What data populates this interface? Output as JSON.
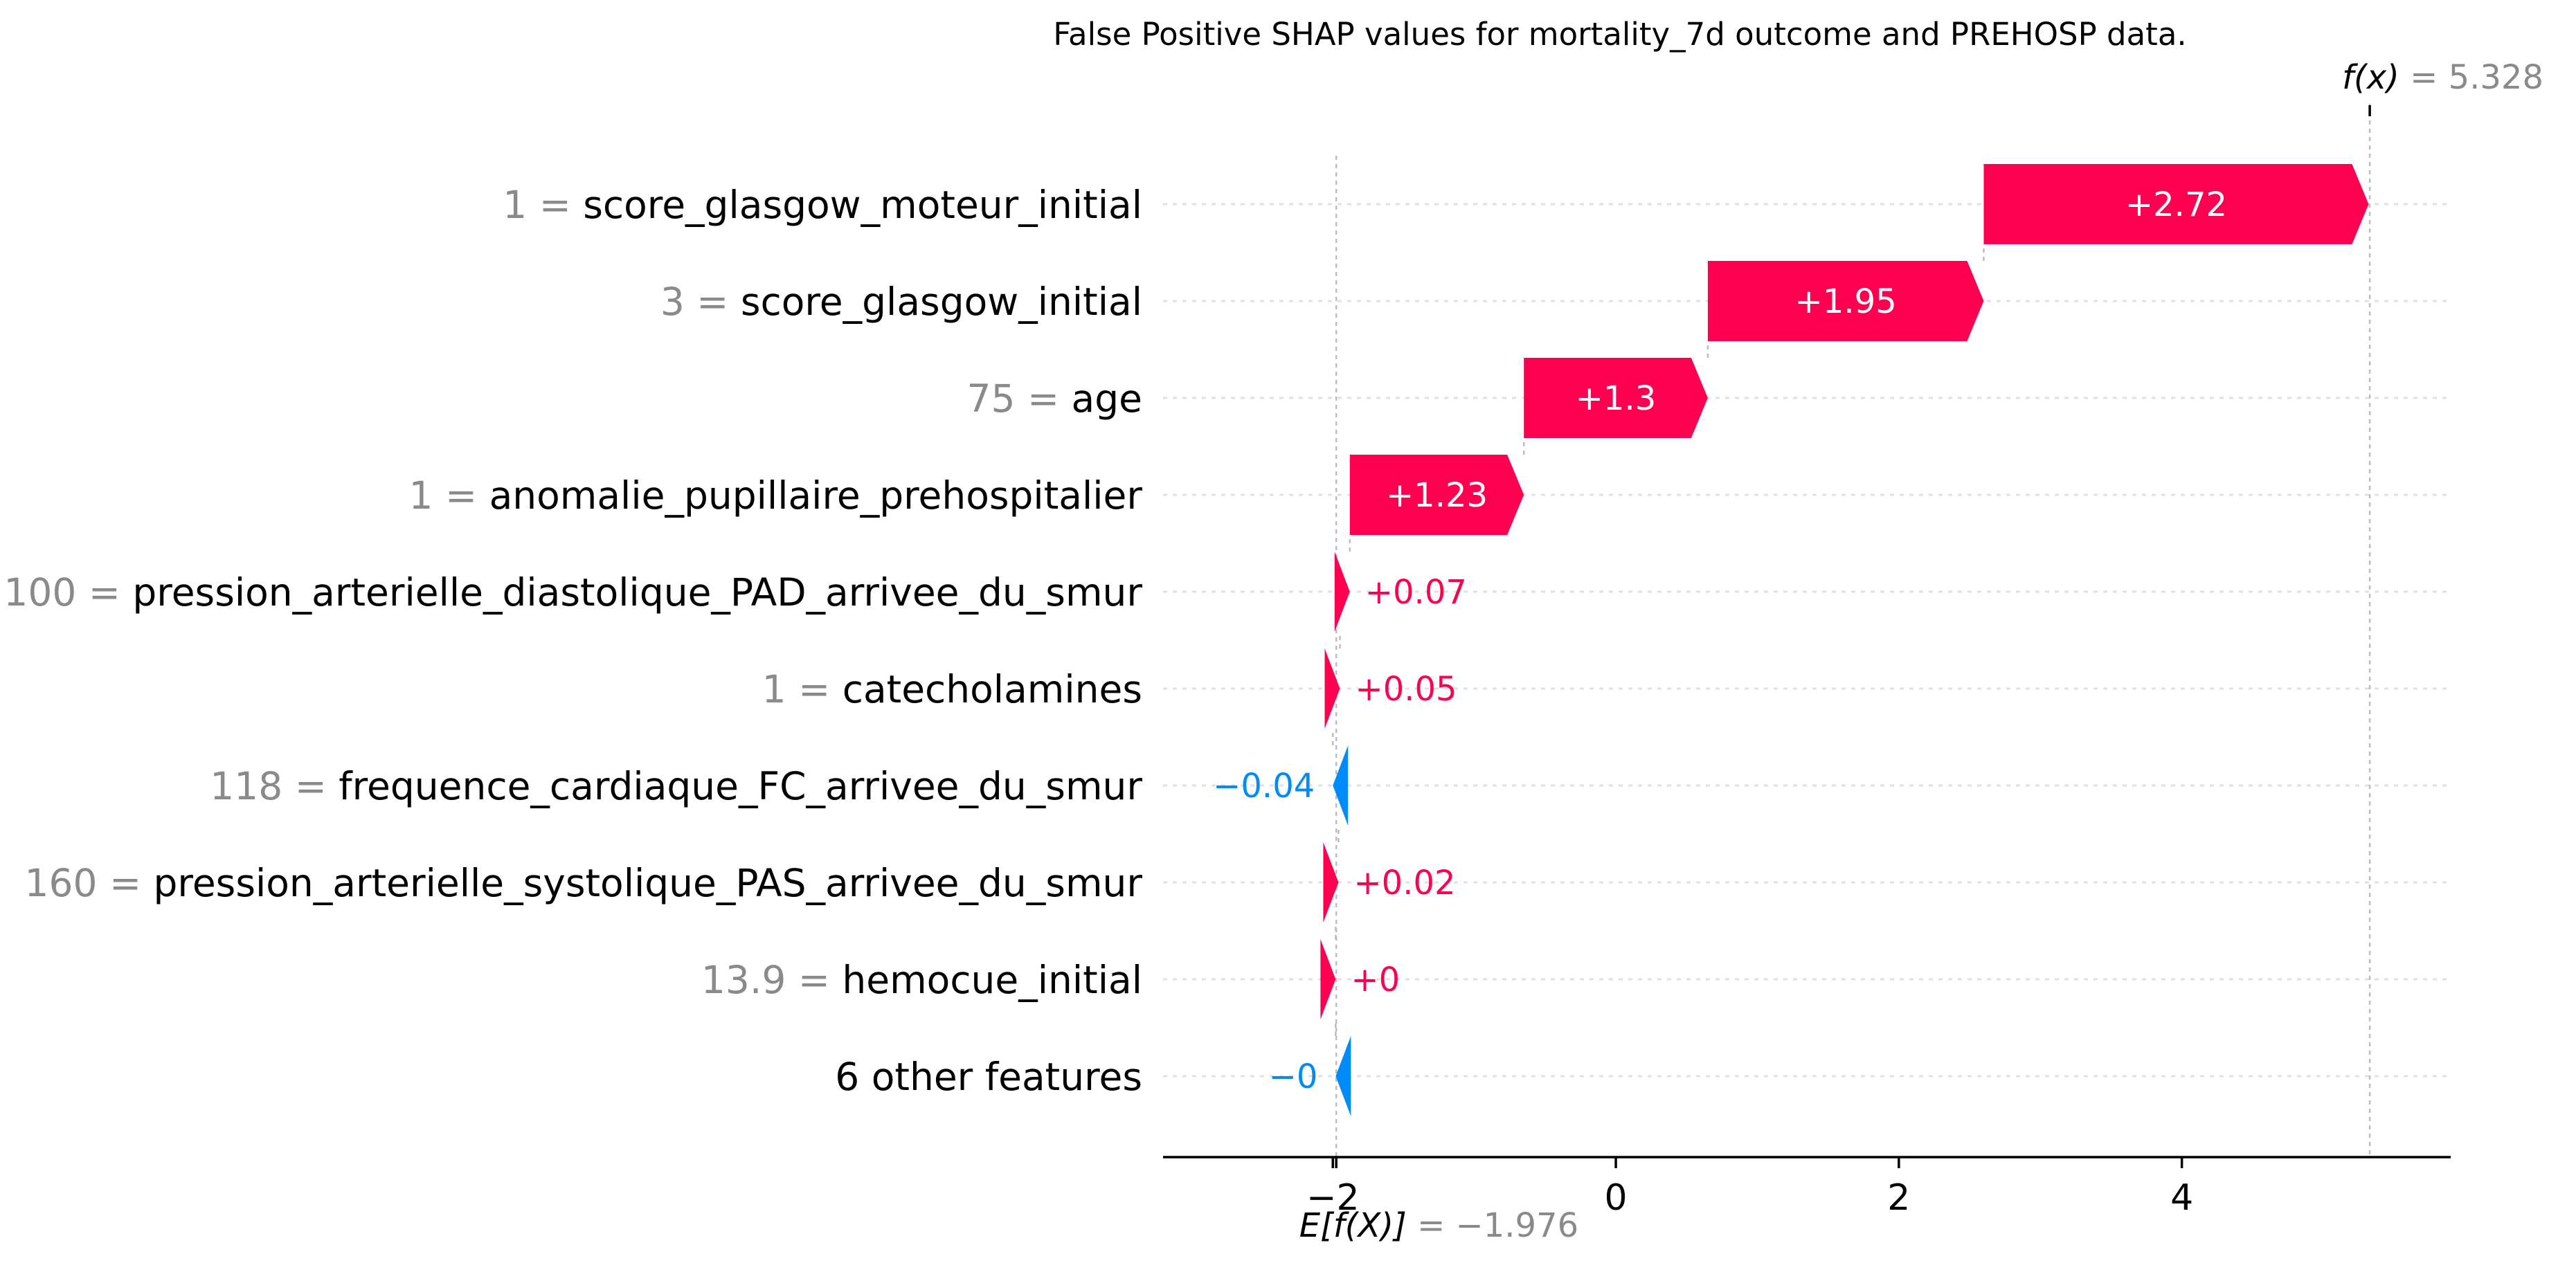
{
  "chart_data": {
    "type": "waterfall",
    "title": "False Positive SHAP values for mortality_7d outcome and PREHOSP data.",
    "base_value": -1.976,
    "output_value": 5.328,
    "base_label": "E[f(X)]",
    "base_value_text": "= −1.976",
    "output_label": "f(x)",
    "output_value_text": "= 5.328",
    "xlim": [
      -3.2,
      5.9
    ],
    "xticks": [
      {
        "value": -2,
        "label": "−2"
      },
      {
        "value": 0,
        "label": "0"
      },
      {
        "value": 2,
        "label": "2"
      },
      {
        "value": 4,
        "label": "4"
      }
    ],
    "colors": {
      "positive": "#ff0051",
      "negative": "#008bfb",
      "muted": "#8a8a8a"
    },
    "features": [
      {
        "value": "1",
        "name": "score_glasgow_moteur_initial",
        "shap": 2.72,
        "label": "+2.72"
      },
      {
        "value": "3",
        "name": "score_glasgow_initial",
        "shap": 1.95,
        "label": "+1.95"
      },
      {
        "value": "75",
        "name": "age",
        "shap": 1.3,
        "label": "+1.3"
      },
      {
        "value": "1",
        "name": "anomalie_pupillaire_prehospitalier",
        "shap": 1.23,
        "label": "+1.23"
      },
      {
        "value": "100",
        "name": "pression_arterielle_diastolique_PAD_arrivee_du_smur",
        "shap": 0.07,
        "label": "+0.07"
      },
      {
        "value": "1",
        "name": "catecholamines",
        "shap": 0.05,
        "label": "+0.05"
      },
      {
        "value": "118",
        "name": "frequence_cardiaque_FC_arrivee_du_smur",
        "shap": -0.04,
        "label": "−0.04"
      },
      {
        "value": "160",
        "name": "pression_arterielle_systolique_PAS_arrivee_du_smur",
        "shap": 0.02,
        "label": "+0.02"
      },
      {
        "value": "13.9",
        "name": "hemocue_initial",
        "shap": 0.0,
        "label": "+0"
      },
      {
        "value": "",
        "name": "6 other features",
        "shap": -0.004,
        "label": "−0"
      }
    ]
  }
}
